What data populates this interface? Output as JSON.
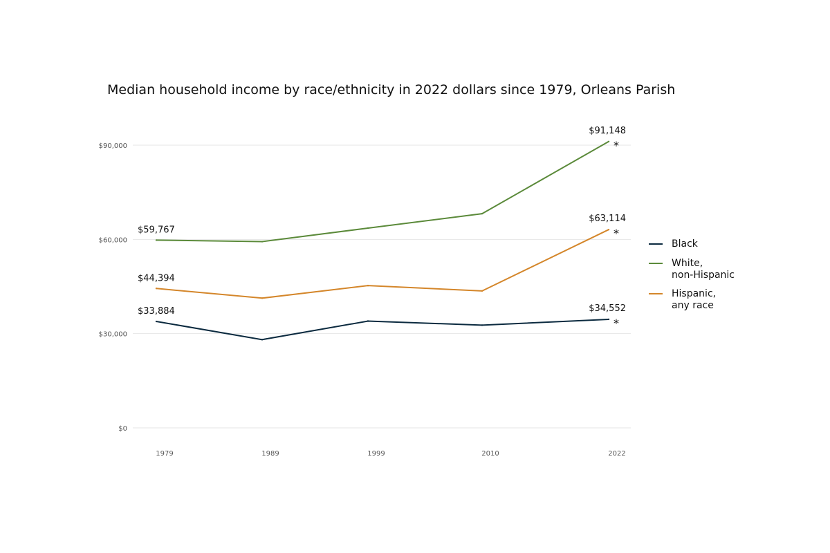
{
  "chart_data": {
    "type": "line",
    "title": "Median household income by race/ethnicity in 2022 dollars since 1979, Orleans Parish",
    "x": [
      "1979",
      "1989",
      "1999",
      "2010",
      "2022"
    ],
    "ylim": [
      0,
      90000
    ],
    "yticks": [
      {
        "value": 0,
        "label": "$0"
      },
      {
        "value": 30000,
        "label": "$30,000"
      },
      {
        "value": 60000,
        "label": "$60,000"
      },
      {
        "value": 90000,
        "label": "$90,000"
      }
    ],
    "grid": true,
    "legend_position": "right",
    "series": [
      {
        "name": "Black",
        "legend_lines": [
          "Black"
        ],
        "color": "#0b2a3f",
        "values": [
          33884,
          28100,
          34000,
          32700,
          34552
        ],
        "start_label": "$33,884",
        "end_label": "$34,552"
      },
      {
        "name": "White, non-Hispanic",
        "legend_lines": [
          "White,",
          "non-Hispanic"
        ],
        "color": "#5b8a3a",
        "values": [
          59767,
          59300,
          63600,
          68200,
          91148
        ],
        "start_label": "$59,767",
        "end_label": "$91,148"
      },
      {
        "name": "Hispanic, any race",
        "legend_lines": [
          "Hispanic,",
          "any race"
        ],
        "color": "#d4862a",
        "values": [
          44394,
          41300,
          45300,
          43600,
          63114
        ],
        "start_label": "$44,394",
        "end_label": "$63,114"
      }
    ],
    "annotations": {
      "end_marker": "*"
    }
  }
}
